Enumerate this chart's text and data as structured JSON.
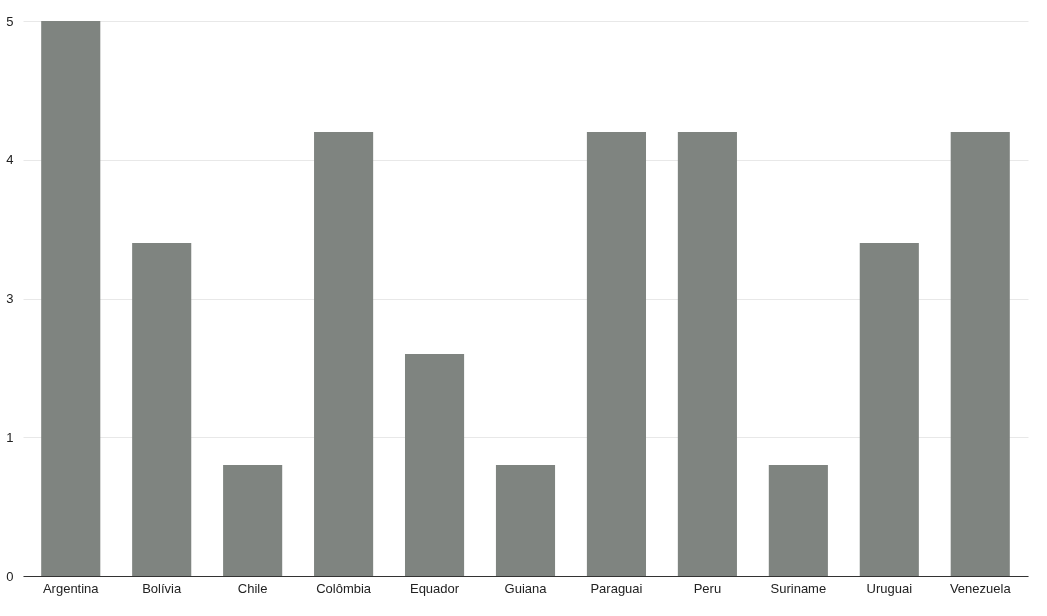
{
  "chart_data": {
    "type": "bar",
    "categories": [
      "Argentina",
      "Bolívia",
      "Chile",
      "Colômbia",
      "Equador",
      "Guiana",
      "Paraguai",
      "Peru",
      "Suriname",
      "Uruguai",
      "Venezuela"
    ],
    "values": [
      5,
      3,
      1,
      4,
      2,
      1,
      4,
      4,
      1,
      3,
      4
    ],
    "color": "#7f8480",
    "ylim": [
      0,
      5
    ],
    "yticks": [
      0,
      {
        "value": 1.25,
        "label": "1"
      },
      {
        "value": 2.5,
        "label": "3"
      },
      {
        "value": 3.75,
        "label": "4"
      },
      5
    ],
    "grid": "y"
  }
}
